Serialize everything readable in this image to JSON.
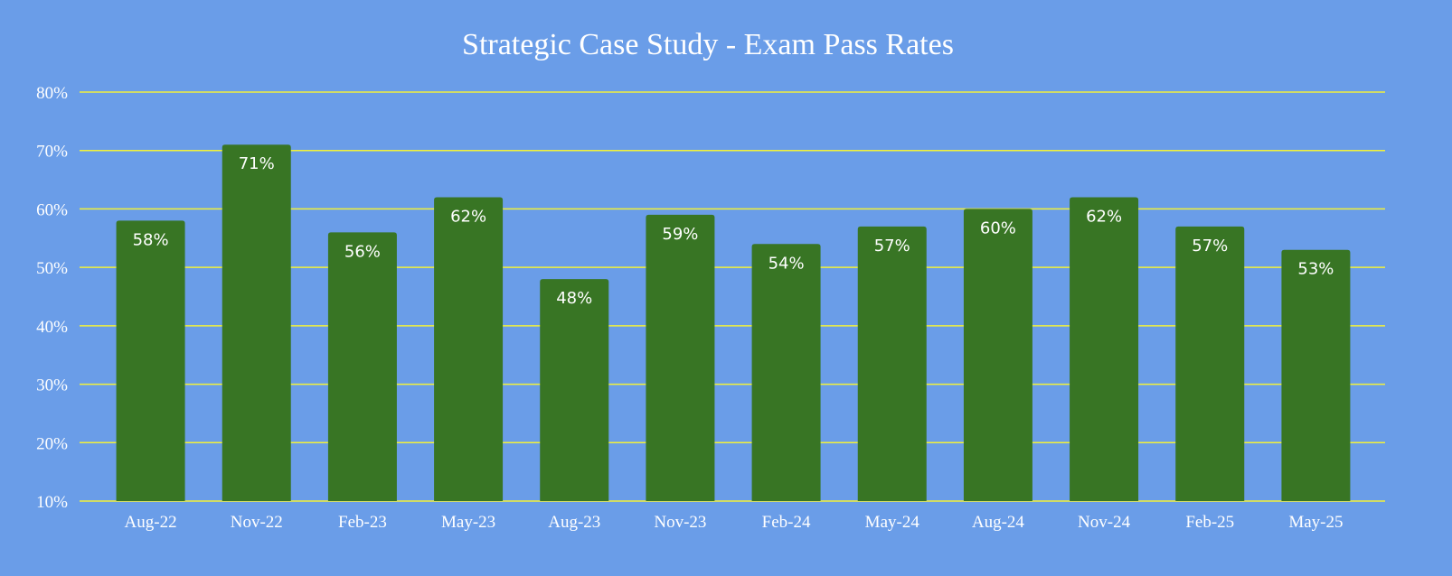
{
  "chart_data": {
    "type": "bar",
    "title": "Strategic Case Study - Exam Pass Rates",
    "xlabel": "",
    "ylabel": "",
    "categories": [
      "Aug-22",
      "Nov-22",
      "Feb-23",
      "May-23",
      "Aug-23",
      "Nov-23",
      "Feb-24",
      "May-24",
      "Aug-24",
      "Nov-24",
      "Feb-25",
      "May-25"
    ],
    "values": [
      58,
      71,
      56,
      62,
      48,
      59,
      54,
      57,
      60,
      62,
      57,
      53
    ],
    "data_labels": [
      "58%",
      "71%",
      "56%",
      "62%",
      "48%",
      "59%",
      "54%",
      "57%",
      "60%",
      "62%",
      "57%",
      "53%"
    ],
    "ylim": [
      10,
      80
    ],
    "yticks": [
      10,
      20,
      30,
      40,
      50,
      60,
      70,
      80
    ],
    "ytick_labels": [
      "10%",
      "20%",
      "30%",
      "40%",
      "50%",
      "60%",
      "70%",
      "80%"
    ],
    "grid": true,
    "legend": "none",
    "colors": {
      "background": "#6a9de8",
      "bar": "#387524",
      "grid": "#f2f23a",
      "text": "#ffffff"
    }
  }
}
